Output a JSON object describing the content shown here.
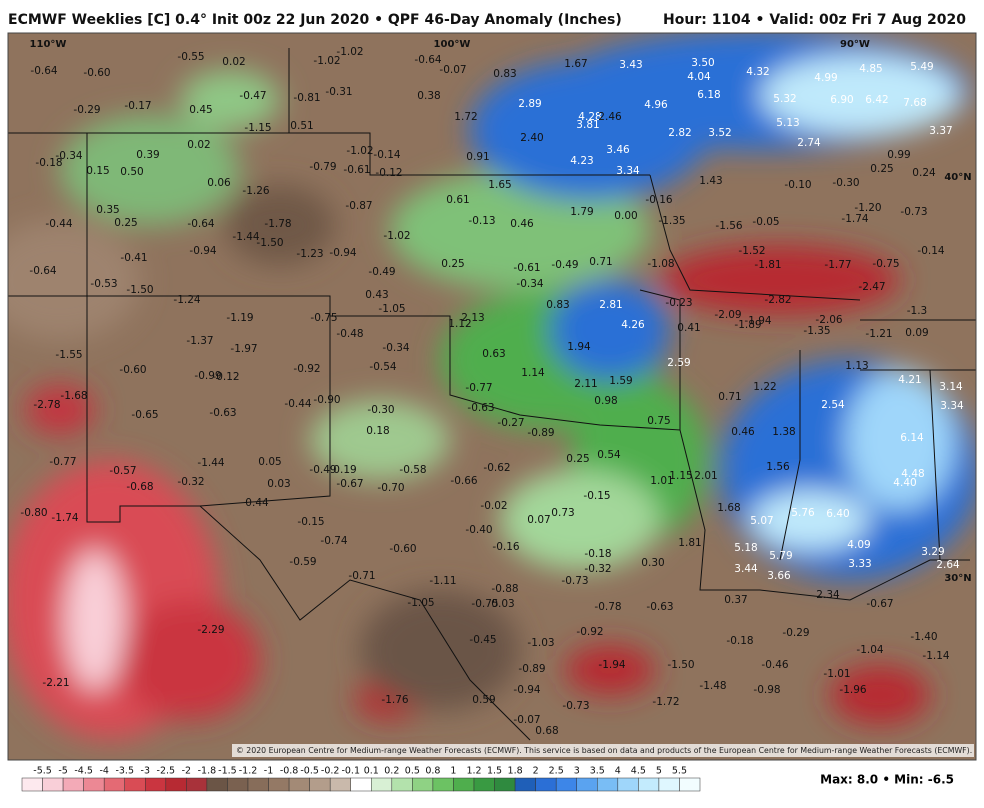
{
  "header": {
    "title": "ECMWF Weeklies [C] 0.4° Init 00z 22 Jun 2020 • QPF 46-Day Anomaly (Inches)",
    "valid": "Hour: 1104 • Valid: 00z Fri 7 Aug 2020"
  },
  "map": {
    "grid_labels": [
      "110°W",
      "100°W",
      "90°W",
      "40°N",
      "30°N"
    ],
    "labels": [
      "-0.64",
      "-0.60",
      "-0.55",
      "0.02",
      "-1.02",
      "-1.02",
      "-0.64",
      "-0.07",
      "0.83",
      "1.67",
      "3.43",
      "3.50",
      "4.04",
      "4.32",
      "4.99",
      "4.85",
      "5.49",
      "-0.29",
      "-0.17",
      "0.45",
      "-0.47",
      "-0.81",
      "-0.31",
      "0.38",
      "2.89",
      "4.96",
      "6.18",
      "5.32",
      "6.90",
      "6.42",
      "7.68",
      "1.72",
      "4.28",
      "3.81",
      "2.46",
      "-1.15",
      "0.51",
      "5.13",
      "3.37",
      "-0.34",
      "-0.18",
      "0.39",
      "0.02",
      "2.40",
      "2.82",
      "3.52",
      "2.74",
      "0.15",
      "0.50",
      "-1.02",
      "-0.14",
      "-0.79",
      "-0.61",
      "-0.12",
      "0.91",
      "4.23",
      "3.46",
      "3.34",
      "0.99",
      "0.25",
      "0.24",
      "0.06",
      "-1.26",
      "1.65",
      "1.43",
      "-0.10",
      "-0.30",
      "0.35",
      "0.25",
      "-0.87",
      "0.61",
      "1.79",
      "0.00",
      "-0.16",
      "-1.20",
      "-0.73",
      "-0.44",
      "-0.64",
      "-1.78",
      "-1.44",
      "-1.50",
      "-1.02",
      "-0.13",
      "0.46",
      "-1.35",
      "-1.56",
      "-0.05",
      "-1.74",
      "-0.94",
      "-0.41",
      "-1.23",
      "-0.94",
      "-1.52",
      "-0.14",
      "-0.64",
      "0.25",
      "-0.61",
      "-0.49",
      "0.71",
      "-1.08",
      "-1.81",
      "-1.77",
      "-0.75",
      "-0.53",
      "-1.50",
      "-0.49",
      "-0.34",
      "-2.47",
      "-1.24",
      "0.43",
      "0.83",
      "2.81",
      "-0.23",
      "-2.82",
      "-1.05",
      "-1.19",
      "-0.75",
      "1.12",
      "2.13",
      "4.26",
      "0.41",
      "-2.09",
      "-1.89",
      "-1.94",
      "-2.06",
      "-1.35",
      "-1.21",
      "-1.3",
      "0.09",
      "-1.37",
      "-1.97",
      "-0.48",
      "-0.34",
      "1.94",
      "0.63",
      "-1.55",
      "-0.60",
      "-0.92",
      "-0.54",
      "2.59",
      "1.13",
      "-0.99",
      "-0.12",
      "1.14",
      "2.11",
      "1.59",
      "4.21",
      "3.14",
      "-1.68",
      "-2.78",
      "-0.77",
      "-0.44",
      "-0.90",
      "0.98",
      "0.71",
      "1.22",
      "2.54",
      "3.34",
      "-0.65",
      "-0.63",
      "-0.30",
      "-0.63",
      "-0.27",
      "-0.89",
      "0.75",
      "0.18",
      "0.46",
      "1.38",
      "6.14",
      "-0.77",
      "-1.44",
      "0.05",
      "-0.49",
      "0.19",
      "-0.58",
      "-0.62",
      "0.25",
      "0.54",
      "1.56",
      "4.48",
      "-0.57",
      "-0.68",
      "-0.32",
      "0.03",
      "-0.67",
      "-0.70",
      "-0.66",
      "1.01",
      "1.15",
      "2.01",
      "4.40",
      "0.44",
      "-0.15",
      "-0.80",
      "-1.74",
      "-0.15",
      "-0.02",
      "0.07",
      "0.73",
      "1.68",
      "5.07",
      "5.76",
      "6.40",
      "-0.74",
      "-0.40",
      "-0.60",
      "-0.16",
      "1.81",
      "5.18",
      "4.09",
      "3.29",
      "-0.59",
      "-0.18",
      "-0.32",
      "0.30",
      "5.79",
      "3.44",
      "3.33",
      "2.64",
      "3.66",
      "-0.71",
      "-1.11",
      "-0.73",
      "-0.88",
      "-0.75",
      "0.03",
      "-0.78",
      "-0.63",
      "0.37",
      "2.34",
      "-0.67",
      "-1.05",
      "-2.29",
      "-0.45",
      "-1.03",
      "-0.92",
      "-0.18",
      "-0.29",
      "-1.40",
      "-1.04",
      "-1.14",
      "-1.94",
      "-1.50",
      "-0.46",
      "-1.01",
      "-2.21",
      "-0.89",
      "-0.94",
      "-1.48",
      "-0.98",
      "-1.96",
      "-1.76",
      "0.59",
      "-0.73",
      "-1.72",
      "-0.07",
      "0.68"
    ],
    "credit": "© 2020 European Centre for Medium-range Weather Forecasts (ECMWF). This service is based on data and products of the European Centre for Medium-range Weather Forecasts (ECMWF)."
  },
  "colorbar": {
    "labels": [
      "-5.5",
      "-5",
      "-4.5",
      "-4",
      "-3.5",
      "-3",
      "-2.5",
      "-2",
      "-1.8",
      "-1.5",
      "-1.2",
      "-1",
      "-0.8",
      "-0.5",
      "-0.2",
      "-0.1",
      "0.1",
      "0.2",
      "0.5",
      "0.8",
      "1",
      "1.2",
      "1.5",
      "1.8",
      "2",
      "2.5",
      "3",
      "3.5",
      "4",
      "4.5",
      "5",
      "5.5"
    ],
    "colors": [
      "#fde9ee",
      "#f9cfd8",
      "#f3aab7",
      "#ec8894",
      "#e46a74",
      "#d94c55",
      "#ca3540",
      "#b72a33",
      "#a8323a",
      "#6b5546",
      "#7a6150",
      "#876d5a",
      "#947965",
      "#a38a76",
      "#b39d8b",
      "#c9b9ab",
      "#ffffff",
      "#d8f0d4",
      "#b3e2ac",
      "#8fd284",
      "#6cc263",
      "#4fae4d",
      "#399a42",
      "#2f8a3f",
      "#1f5fb8",
      "#2b6fd6",
      "#3d86e8",
      "#5aa3f0",
      "#79bdf5",
      "#9fd6fa",
      "#c3ebfd",
      "#dff7ff",
      "#f2fdff"
    ]
  },
  "footer": {
    "maxmin": "Max: 8.0 • Min: -6.5"
  }
}
